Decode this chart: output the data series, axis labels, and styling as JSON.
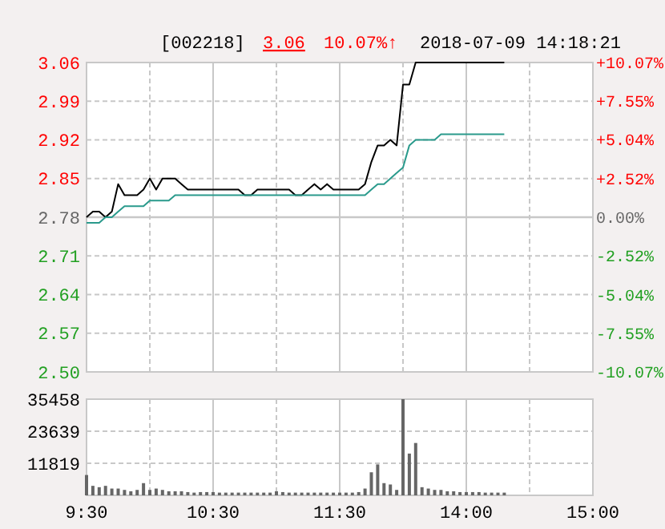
{
  "chart_data": [
    {
      "type": "line",
      "title": "[002218]",
      "annotations": [
        "3.06",
        "10.07%↑",
        "2018-07-09 14:18:21"
      ],
      "categories": [
        null,
        null,
        null,
        null,
        null,
        null,
        null,
        null,
        null,
        null,
        null,
        null,
        null,
        null,
        null,
        null,
        null,
        null,
        null,
        null,
        null,
        null,
        null,
        null,
        null,
        null,
        null,
        null,
        null,
        null,
        null,
        null,
        null,
        null,
        null,
        null,
        null,
        null,
        null,
        null,
        null,
        null,
        null,
        null,
        null,
        null,
        null,
        null,
        null,
        null,
        null,
        null,
        null,
        null,
        null,
        null,
        null,
        null,
        null,
        null,
        null,
        null,
        null,
        null,
        null,
        null,
        null,
        null,
        null,
        null,
        null,
        null,
        null,
        null,
        null,
        null,
        null,
        null,
        null,
        null,
        null
      ],
      "ylim": [
        2.5,
        3.06
      ],
      "yticks": [
        {
          "value": 2.5,
          "label": "2.50"
        },
        {
          "value": 2.57,
          "label": "2.57"
        },
        {
          "value": 2.64,
          "label": "2.64"
        },
        {
          "value": 2.71,
          "label": "2.71"
        },
        {
          "value": 2.78,
          "label": "2.78"
        },
        {
          "value": 2.85,
          "label": "2.85"
        },
        {
          "value": 2.92,
          "label": "2.92"
        },
        {
          "value": 2.99,
          "label": "2.99"
        },
        {
          "value": 3.06,
          "label": "3.06"
        }
      ],
      "y2lim": [
        -10.07,
        10.07
      ],
      "y2ticks": [
        {
          "value": -10.07,
          "label": "-10.07%"
        },
        {
          "value": -7.55,
          "label": "-7.55%"
        },
        {
          "value": -5.04,
          "label": "-5.04%"
        },
        {
          "value": -2.52,
          "label": "-2.52%"
        },
        {
          "value": 0,
          "label": "0.00%"
        },
        {
          "value": 2.52,
          "label": "+2.52%"
        },
        {
          "value": 5.04,
          "label": "+5.04%"
        },
        {
          "value": 7.55,
          "label": "+7.55%"
        },
        {
          "value": 10.07,
          "label": "+10.07%"
        }
      ],
      "ref_lines": [
        {
          "axis": "y",
          "value": 2.78,
          "color": "#c8c8c8"
        }
      ],
      "grid": true,
      "tick_labels": "y",
      "series": [
        {
          "color": "#000000",
          "values": [
            2.78,
            2.79,
            2.79,
            2.78,
            2.79,
            2.84,
            2.82,
            2.82,
            2.82,
            2.83,
            2.85,
            2.83,
            2.85,
            2.85,
            2.85,
            2.84,
            2.83,
            2.83,
            2.83,
            2.83,
            2.83,
            2.83,
            2.83,
            2.83,
            2.83,
            2.82,
            2.82,
            2.83,
            2.83,
            2.83,
            2.83,
            2.83,
            2.83,
            2.82,
            2.82,
            2.83,
            2.84,
            2.83,
            2.84,
            2.83,
            2.83,
            2.83,
            2.83,
            2.83,
            2.84,
            2.88,
            2.91,
            2.91,
            2.92,
            2.91,
            3.02,
            3.02,
            3.06,
            3.06,
            3.06,
            3.06,
            3.06,
            3.06,
            3.06,
            3.06,
            3.06,
            3.06,
            3.06,
            3.06,
            3.06,
            3.06,
            3.06,
            null,
            null,
            null,
            null,
            null,
            null,
            null,
            null,
            null,
            null,
            null,
            null,
            null,
            null
          ]
        },
        {
          "color": "#2a9a8c",
          "values": [
            2.77,
            2.77,
            2.77,
            2.78,
            2.78,
            2.79,
            2.8,
            2.8,
            2.8,
            2.8,
            2.81,
            2.81,
            2.81,
            2.81,
            2.82,
            2.82,
            2.82,
            2.82,
            2.82,
            2.82,
            2.82,
            2.82,
            2.82,
            2.82,
            2.82,
            2.82,
            2.82,
            2.82,
            2.82,
            2.82,
            2.82,
            2.82,
            2.82,
            2.82,
            2.82,
            2.82,
            2.82,
            2.82,
            2.82,
            2.82,
            2.82,
            2.82,
            2.82,
            2.82,
            2.82,
            2.83,
            2.84,
            2.84,
            2.85,
            2.86,
            2.87,
            2.91,
            2.92,
            2.92,
            2.92,
            2.92,
            2.93,
            2.93,
            2.93,
            2.93,
            2.93,
            2.93,
            2.93,
            2.93,
            2.93,
            2.93,
            2.93,
            null,
            null,
            null,
            null,
            null,
            null,
            null,
            null,
            null,
            null,
            null,
            null,
            null,
            null
          ]
        }
      ]
    },
    {
      "type": "bar",
      "color": "#666666",
      "categories": [
        "9:30",
        null,
        null,
        null,
        null,
        null,
        null,
        null,
        null,
        null,
        null,
        null,
        null,
        null,
        null,
        null,
        null,
        null,
        null,
        null,
        "10:30",
        null,
        null,
        null,
        null,
        null,
        null,
        null,
        null,
        null,
        null,
        null,
        null,
        null,
        null,
        null,
        null,
        null,
        null,
        null,
        "11:30",
        null,
        null,
        null,
        null,
        null,
        null,
        null,
        null,
        null,
        null,
        null,
        null,
        null,
        null,
        null,
        null,
        null,
        null,
        null,
        "14:00",
        null,
        null,
        null,
        null,
        null,
        null,
        null,
        null,
        null,
        null,
        null,
        null,
        null,
        null,
        null,
        null,
        null,
        null,
        null,
        "15:00"
      ],
      "ylim": [
        0,
        35458
      ],
      "yticks": [
        11819,
        23639,
        35458
      ],
      "grid": true,
      "values": [
        7500,
        3500,
        3000,
        3500,
        2500,
        2500,
        2000,
        1500,
        2000,
        4500,
        2000,
        2500,
        2000,
        1500,
        1500,
        1500,
        1200,
        1000,
        1200,
        1200,
        1200,
        1000,
        1000,
        1000,
        1000,
        1000,
        1000,
        1000,
        1000,
        1000,
        1500,
        1200,
        1000,
        1000,
        1000,
        1000,
        1000,
        1000,
        1000,
        1000,
        1000,
        1000,
        1000,
        1200,
        2500,
        8500,
        11400,
        4500,
        4000,
        2000,
        35458,
        15400,
        19300,
        3000,
        2500,
        2000,
        2000,
        1500,
        1500,
        1200,
        1200,
        1200,
        1200,
        1000,
        1000,
        1000,
        1000,
        null,
        null,
        null,
        null,
        null,
        null,
        null,
        null,
        null,
        null,
        null,
        null,
        null,
        null
      ]
    }
  ]
}
